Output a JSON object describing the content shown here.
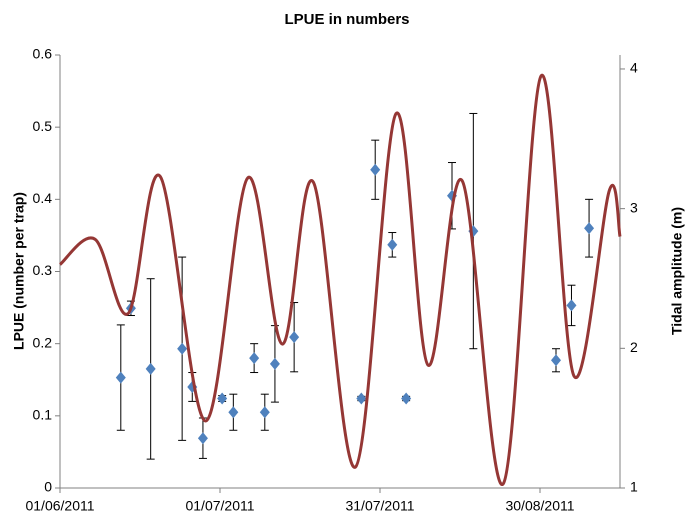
{
  "chart_data": {
    "type": "scatter",
    "title": "LPUE in numbers",
    "ylabel": "LPUE (number per trap)",
    "y2label": "Tidal amplitude (m)",
    "xlim": [
      0,
      105
    ],
    "xticks": [
      {
        "value": 0,
        "label": "01/06/2011"
      },
      {
        "value": 30,
        "label": "01/07/2011"
      },
      {
        "value": 60,
        "label": "31/07/2011"
      },
      {
        "value": 90,
        "label": "30/08/2011"
      }
    ],
    "ylim": [
      0,
      0.6
    ],
    "yticks": [
      0,
      0.1,
      0.2,
      0.3,
      0.4,
      0.5,
      0.6
    ],
    "y2lim": [
      1,
      4.1
    ],
    "y2ticks": [
      1,
      2,
      3,
      4
    ],
    "series": [
      {
        "name": "LPUE",
        "color": "#4f81bd",
        "x": [
          11.4,
          13.3,
          17,
          22.9,
          24.8,
          26.8,
          30.4,
          32.5,
          36.4,
          38.4,
          40.3,
          43.9,
          56.5,
          59.1,
          62.3,
          64.9,
          73.5,
          77.5,
          93,
          95.9,
          99.2
        ],
        "values": [
          0.153,
          0.249,
          0.165,
          0.193,
          0.14,
          0.069,
          0.124,
          0.105,
          0.18,
          0.105,
          0.172,
          0.209,
          0.124,
          0.441,
          0.337,
          0.124,
          0.405,
          0.356,
          0.177,
          0.253,
          0.36
        ],
        "errors": [
          0.073,
          0.01,
          0.125,
          0.127,
          0.02,
          0.028,
          0.004,
          0.025,
          0.02,
          0.025,
          0.053,
          0.048,
          0.003,
          0.041,
          0.017,
          0.003,
          0.046,
          0.163,
          0.016,
          0.028,
          0.04
        ]
      },
      {
        "name": "Tidal amplitude",
        "color": "#953735",
        "axis": "y2",
        "x": [
          0,
          6.6,
          12.8,
          18.8,
          27.3,
          35.2,
          41.7,
          47.5,
          55.4,
          63,
          69,
          75.4,
          83.1,
          90.2,
          96.4,
          103,
          105
        ],
        "values": [
          2.6,
          2.78,
          2.25,
          3.23,
          1.48,
          3.22,
          2.03,
          3.19,
          1.15,
          3.68,
          1.88,
          3.2,
          1.03,
          3.95,
          1.8,
          3.13,
          2.8
        ]
      }
    ]
  }
}
